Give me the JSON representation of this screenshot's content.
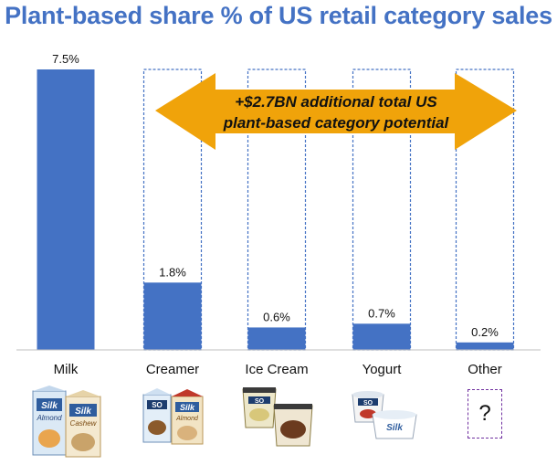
{
  "chart_data": {
    "type": "bar",
    "title": "Plant-based share % of US retail category sales",
    "categories": [
      "Milk",
      "Creamer",
      "Ice Cream",
      "Yogurt",
      "Other"
    ],
    "values": [
      7.5,
      1.8,
      0.6,
      0.7,
      0.2
    ],
    "value_labels": [
      "7.5%",
      "1.8%",
      "0.6%",
      "0.7%",
      "0.2%"
    ],
    "potential_value": 7.5,
    "ylim": [
      0,
      7.5
    ],
    "xlabel": "",
    "ylabel": "",
    "grid": false,
    "annotation": {
      "line1": "+$2.7BN additional total US",
      "line2": "plant-based category potential"
    },
    "colors": {
      "bar": "#4472c4",
      "dashed": "#4472c4",
      "arrow": "#f0a30a",
      "title": "#4472c4",
      "other_box": "#7030a0"
    }
  },
  "products": {
    "milk_brand_1": "Silk",
    "milk_sub_1": "Almond",
    "milk_brand_2": "Silk",
    "milk_sub_2": "Cashew",
    "creamer_brand_1": "SO",
    "creamer_brand_2": "Silk",
    "creamer_sub_2": "Almond",
    "icecream_brand": "SO",
    "yogurt_brand_1": "SO",
    "yogurt_brand_2": "Silk",
    "other_mark": "?"
  }
}
